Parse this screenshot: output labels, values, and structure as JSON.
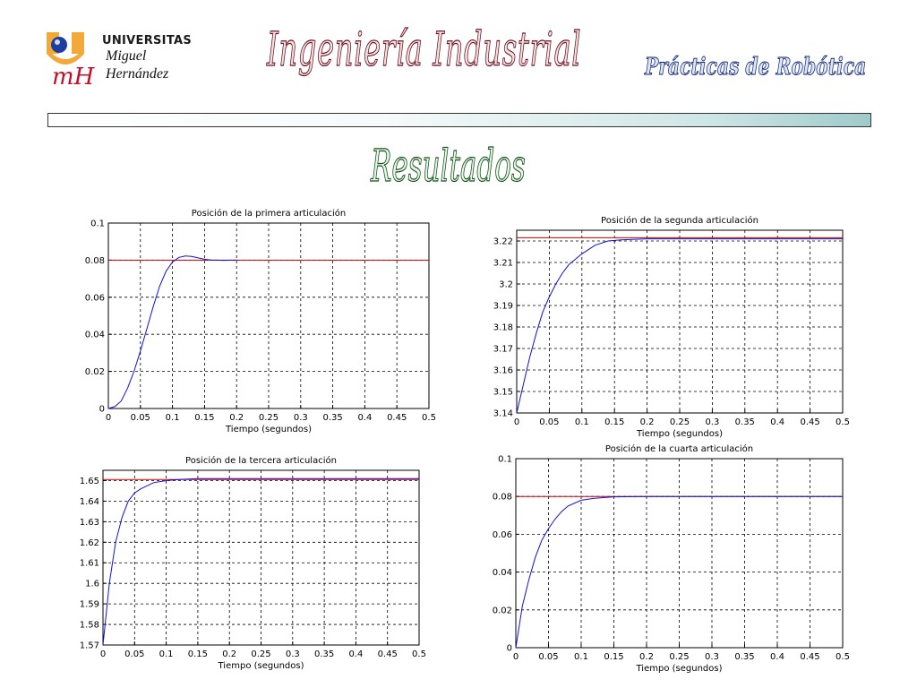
{
  "header": {
    "logo_line1": "UNIVERSITAS",
    "logo_line2": "Miguel",
    "logo_line3": "Hernández",
    "main_title": "Ingeniería Industrial",
    "subtitle": "Prácticas de Robótica"
  },
  "section_title": "Resultados",
  "colors": {
    "response": "#1010e0",
    "reference": "#d00000"
  },
  "chart_data": [
    {
      "type": "line",
      "title": "Posición de la primera articulación",
      "xlabel": "Tiempo (segundos)",
      "ylabel": "",
      "xlim": [
        0,
        0.5
      ],
      "ylim": [
        0,
        0.1
      ],
      "xticks": [
        0,
        0.05,
        0.1,
        0.15,
        0.2,
        0.25,
        0.3,
        0.35,
        0.4,
        0.45,
        0.5
      ],
      "yticks": [
        0,
        0.02,
        0.04,
        0.06,
        0.08,
        0.1
      ],
      "grid": true,
      "series": [
        {
          "x": [
            0,
            0.01,
            0.02,
            0.03,
            0.04,
            0.05,
            0.06,
            0.07,
            0.08,
            0.09,
            0.1,
            0.11,
            0.12,
            0.13,
            0.14,
            0.15,
            0.16,
            0.18,
            0.2
          ],
          "y": [
            0,
            0.001,
            0.004,
            0.011,
            0.02,
            0.031,
            0.043,
            0.055,
            0.066,
            0.074,
            0.079,
            0.0815,
            0.0822,
            0.082,
            0.0812,
            0.0805,
            0.0801,
            0.0799,
            0.08
          ]
        },
        {
          "x": [
            0,
            0.5
          ],
          "y": [
            0.08,
            0.08
          ]
        }
      ]
    },
    {
      "type": "line",
      "title": "Posición de la segunda articulación",
      "xlabel": "Tiempo (segundos)",
      "ylabel": "",
      "xlim": [
        0,
        0.5
      ],
      "ylim": [
        3.14,
        3.225
      ],
      "xticks": [
        0,
        0.05,
        0.1,
        0.15,
        0.2,
        0.25,
        0.3,
        0.35,
        0.4,
        0.45,
        0.5
      ],
      "yticks": [
        3.14,
        3.15,
        3.16,
        3.17,
        3.18,
        3.19,
        3.2,
        3.21,
        3.22
      ],
      "grid": true,
      "series": [
        {
          "x": [
            0,
            0.01,
            0.02,
            0.03,
            0.04,
            0.05,
            0.06,
            0.07,
            0.08,
            0.1,
            0.12,
            0.14,
            0.16,
            0.2,
            0.3,
            0.4,
            0.5
          ],
          "y": [
            3.14,
            3.153,
            3.166,
            3.177,
            3.187,
            3.194,
            3.2,
            3.205,
            3.209,
            3.214,
            3.218,
            3.22,
            3.2205,
            3.221,
            3.221,
            3.221,
            3.221
          ]
        },
        {
          "x": [
            0,
            0.5
          ],
          "y": [
            3.2215,
            3.2215
          ]
        }
      ]
    },
    {
      "type": "line",
      "title": "Posición de la tercera articulación",
      "xlabel": "Tiempo (segundos)",
      "ylabel": "",
      "xlim": [
        0,
        0.5
      ],
      "ylim": [
        1.57,
        1.655
      ],
      "xticks": [
        0,
        0.05,
        0.1,
        0.15,
        0.2,
        0.25,
        0.3,
        0.35,
        0.4,
        0.45,
        0.5
      ],
      "yticks": [
        1.57,
        1.58,
        1.59,
        1.6,
        1.61,
        1.62,
        1.63,
        1.64,
        1.65
      ],
      "grid": true,
      "series": [
        {
          "x": [
            0,
            0.01,
            0.02,
            0.03,
            0.04,
            0.05,
            0.06,
            0.08,
            0.1,
            0.12,
            0.15,
            0.2,
            0.3,
            0.4,
            0.5
          ],
          "y": [
            1.57,
            1.6,
            1.62,
            1.632,
            1.64,
            1.644,
            1.646,
            1.649,
            1.65,
            1.6505,
            1.651,
            1.651,
            1.651,
            1.651,
            1.651
          ]
        },
        {
          "x": [
            0,
            0.5
          ],
          "y": [
            1.6505,
            1.6505
          ]
        }
      ]
    },
    {
      "type": "line",
      "title": "Posición de la cuarta articulación",
      "xlabel": "Tiempo (segundos)",
      "ylabel": "",
      "xlim": [
        0,
        0.5
      ],
      "ylim": [
        0,
        0.1
      ],
      "xticks": [
        0,
        0.05,
        0.1,
        0.15,
        0.2,
        0.25,
        0.3,
        0.35,
        0.4,
        0.45,
        0.5
      ],
      "yticks": [
        0,
        0.02,
        0.04,
        0.06,
        0.08,
        0.1
      ],
      "grid": true,
      "series": [
        {
          "x": [
            0,
            0.01,
            0.02,
            0.03,
            0.04,
            0.05,
            0.06,
            0.07,
            0.08,
            0.1,
            0.12,
            0.15,
            0.2,
            0.3,
            0.4,
            0.5
          ],
          "y": [
            0,
            0.022,
            0.036,
            0.048,
            0.057,
            0.063,
            0.068,
            0.072,
            0.075,
            0.078,
            0.079,
            0.0798,
            0.08,
            0.08,
            0.08,
            0.08
          ]
        },
        {
          "x": [
            0,
            0.5
          ],
          "y": [
            0.08,
            0.08
          ]
        }
      ]
    }
  ]
}
